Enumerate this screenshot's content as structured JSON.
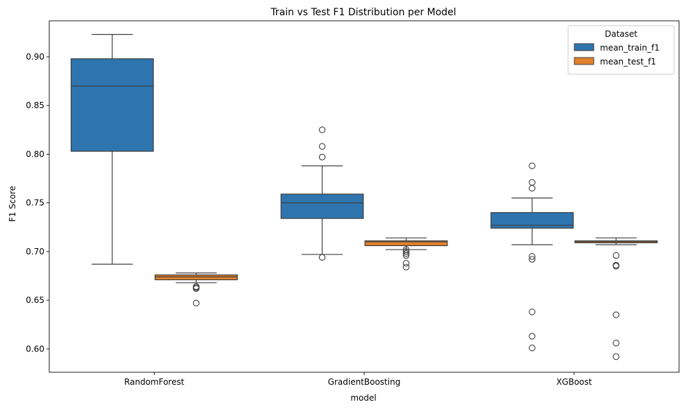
{
  "chart_data": {
    "type": "boxplot",
    "title": "Train vs Test F1 Distribution per Model",
    "xlabel": "model",
    "ylabel": "F1 Score",
    "ylim": [
      0.576,
      0.937
    ],
    "yticks": [
      0.6,
      0.65,
      0.7,
      0.75,
      0.8,
      0.85,
      0.9
    ],
    "ytick_labels": [
      "0.60",
      "0.65",
      "0.70",
      "0.75",
      "0.80",
      "0.85",
      "0.90"
    ],
    "categories": [
      "RandomForest",
      "GradientBoosting",
      "XGBoost"
    ],
    "grid": false,
    "legend": {
      "title": "Dataset",
      "position": "top-right"
    },
    "series": [
      {
        "name": "mean_train_f1",
        "color": "#2e75b0",
        "boxes": [
          {
            "whisker_low": 0.687,
            "q1": 0.803,
            "median": 0.87,
            "q3": 0.898,
            "whisker_high": 0.923,
            "outliers": []
          },
          {
            "whisker_low": 0.697,
            "q1": 0.734,
            "median": 0.75,
            "q3": 0.759,
            "whisker_high": 0.788,
            "outliers": [
              0.694,
              0.797,
              0.808,
              0.825
            ]
          },
          {
            "whisker_low": 0.707,
            "q1": 0.724,
            "median": 0.727,
            "q3": 0.74,
            "whisker_high": 0.755,
            "outliers": [
              0.601,
              0.613,
              0.638,
              0.692,
              0.695,
              0.765,
              0.771,
              0.788
            ]
          }
        ]
      },
      {
        "name": "mean_test_f1",
        "color": "#e1812c",
        "boxes": [
          {
            "whisker_low": 0.668,
            "q1": 0.671,
            "median": 0.674,
            "q3": 0.676,
            "whisker_high": 0.678,
            "outliers": [
              0.647,
              0.662,
              0.663,
              0.664
            ]
          },
          {
            "whisker_low": 0.702,
            "q1": 0.706,
            "median": 0.71,
            "q3": 0.711,
            "whisker_high": 0.714,
            "outliers": [
              0.684,
              0.688,
              0.696,
              0.698,
              0.7,
              0.702
            ]
          },
          {
            "whisker_low": 0.707,
            "q1": 0.709,
            "median": 0.71,
            "q3": 0.711,
            "whisker_high": 0.714,
            "outliers": [
              0.592,
              0.606,
              0.635,
              0.685,
              0.686,
              0.696
            ]
          }
        ]
      }
    ]
  }
}
